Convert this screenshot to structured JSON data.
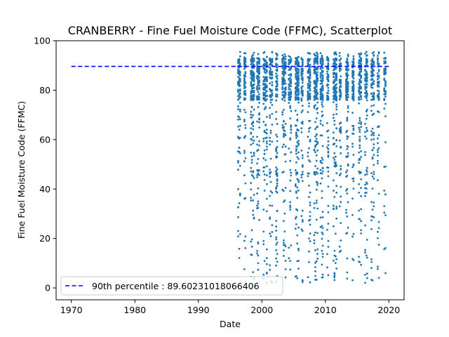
{
  "chart_data": {
    "type": "scatter",
    "title": "CRANBERRY - Fine Fuel Moisture Code (FFMC), Scatterplot",
    "xlabel": "Date",
    "ylabel": "Fine Fuel Moisture Code (FFMC)",
    "xlim": [
      1967.6,
      2022.4
    ],
    "ylim": [
      -4.8,
      100.0
    ],
    "xticks": [
      1970,
      1980,
      1990,
      2000,
      2010,
      2020
    ],
    "yticks": [
      0,
      20,
      40,
      60,
      80,
      100
    ],
    "grid": false,
    "legend_position": "lower-left",
    "series": [
      {
        "kind": "scatter",
        "color": "#1f77b4",
        "data_coverage": {
          "x_range": [
            1996,
            2019.5
          ],
          "y_range": [
            1.5,
            95.5
          ],
          "seasonal": true
        }
      },
      {
        "kind": "line",
        "name": "90th percentile : 89.60231018066406",
        "color": "#0000ff",
        "linestyle": "dashed",
        "x": [
          1970,
          2020
        ],
        "y": [
          89.60231018066406,
          89.60231018066406
        ]
      }
    ]
  }
}
